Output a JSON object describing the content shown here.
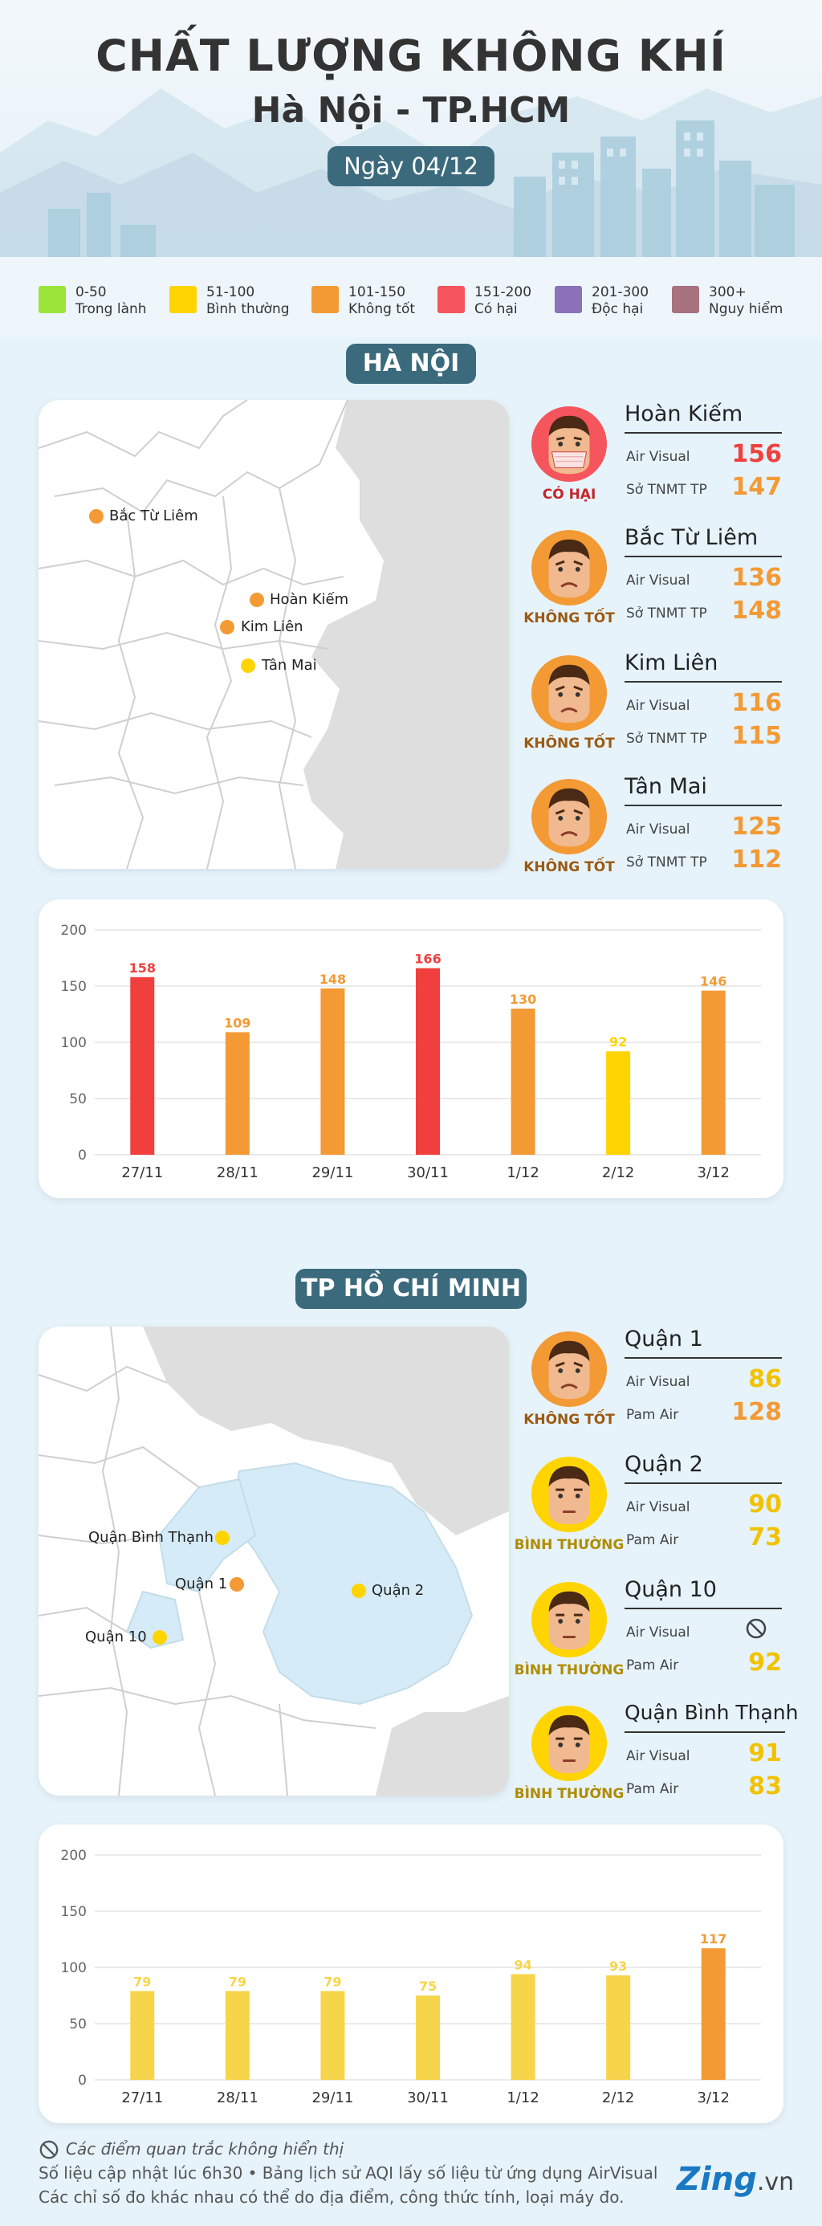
{
  "header": {
    "title": "CHẤT LƯỢNG KHÔNG KHÍ",
    "subtitle": "Hà Nội - TP.HCM",
    "date": "Ngày 04/12"
  },
  "legend": [
    {
      "range": "0-50",
      "label": "Trong lành",
      "color": "#9be438"
    },
    {
      "range": "51-100",
      "label": "Bình thường",
      "color": "#ffd400"
    },
    {
      "range": "101-150",
      "label": "Không tốt",
      "color": "#f39a35"
    },
    {
      "range": "151-200",
      "label": "Có hại",
      "color": "#f5555c"
    },
    {
      "range": "201-300",
      "label": "Độc hại",
      "color": "#8c72b8"
    },
    {
      "range": "300+",
      "label": "Nguy hiểm",
      "color": "#a7717d"
    }
  ],
  "hanoi": {
    "section_title": "HÀ NỘI",
    "map_labels": [
      "Bắc Từ Liêm",
      "Hoàn Kiếm",
      "Kim Liên",
      "Tân Mai"
    ],
    "stations": [
      {
        "name": "Hoàn Kiếm",
        "status": "CÓ HẠI",
        "source1": "Air Visual",
        "value1": "156",
        "source2": "Sở TNMT TP",
        "value2": "147"
      },
      {
        "name": "Bắc Từ Liêm",
        "status": "KHÔNG TỐT",
        "source1": "Air Visual",
        "value1": "136",
        "source2": "Sở TNMT TP",
        "value2": "148"
      },
      {
        "name": "Kim Liên",
        "status": "KHÔNG TỐT",
        "source1": "Air Visual",
        "value1": "116",
        "source2": "Sở TNMT TP",
        "value2": "115"
      },
      {
        "name": "Tân Mai",
        "status": "KHÔNG TỐT",
        "source1": "Air Visual",
        "value1": "125",
        "source2": "Sở TNMT TP",
        "value2": "112"
      }
    ]
  },
  "hcm": {
    "section_title": "TP HỒ CHÍ MINH",
    "map_labels": [
      "Quận Bình Thạnh",
      "Quận 1",
      "Quận 2",
      "Quận 10"
    ],
    "stations": [
      {
        "name": "Quận 1",
        "status": "KHÔNG TỐT",
        "source1": "Air Visual",
        "value1": "86",
        "source2": "Pam Air",
        "value2": "128"
      },
      {
        "name": "Quận 2",
        "status": "BÌNH THƯỜNG",
        "source1": "Air Visual",
        "value1": "90",
        "source2": "Pam Air",
        "value2": "73"
      },
      {
        "name": "Quận 10",
        "status": "BÌNH THƯỜNG",
        "source1": "Air Visual",
        "value1": "",
        "source2": "Pam Air",
        "value2": "92"
      },
      {
        "name": "Quận Bình Thạnh",
        "status": "BÌNH THƯỜNG",
        "source1": "Air Visual",
        "value1": "91",
        "source2": "Pam Air",
        "value2": "83"
      }
    ]
  },
  "chart_data": [
    {
      "type": "bar",
      "title": "",
      "xlabel": "",
      "ylabel": "",
      "ylim": [
        0,
        200
      ],
      "yticks": [
        0,
        50,
        100,
        150,
        200
      ],
      "grid": true,
      "categories": [
        "27/11",
        "28/11",
        "29/11",
        "30/11",
        "1/12",
        "2/12",
        "3/12"
      ],
      "values": [
        158,
        109,
        148,
        166,
        130,
        92,
        146
      ],
      "bar_colors": [
        "#f0403e",
        "#f39a35",
        "#f39a35",
        "#f0403e",
        "#f39a35",
        "#ffd400",
        "#f39a35"
      ]
    },
    {
      "type": "bar",
      "title": "",
      "xlabel": "",
      "ylabel": "",
      "ylim": [
        0,
        200
      ],
      "yticks": [
        0,
        50,
        100,
        150,
        200
      ],
      "grid": true,
      "categories": [
        "27/11",
        "28/11",
        "29/11",
        "30/11",
        "1/12",
        "2/12",
        "3/12"
      ],
      "values": [
        79,
        79,
        79,
        75,
        94,
        93,
        117
      ],
      "bar_colors": [
        "#f7d54a",
        "#f7d54a",
        "#f7d54a",
        "#f7d54a",
        "#f7d54a",
        "#f7d54a",
        "#f39a35"
      ]
    }
  ],
  "footer": {
    "note1": "Các điểm quan trắc không hiển thị",
    "note2": "Số liệu cập nhật lúc 6h30 • Bảng lịch sử AQI lấy số liệu từ ứng dụng AirVisual",
    "note3": "Các chỉ số đo khác nhau có thể do địa điểm, công thức tính, loại máy đo.",
    "brand": "Zing",
    "brand_suffix": ".vn"
  },
  "icons": {
    "not-shown": "no-entry-icon"
  },
  "colors": {
    "pill": "#3b6a7d",
    "bad": "#f39a35",
    "harmful": "#f0403e",
    "normal": "#ffd400",
    "status_red": "#c3262c",
    "status_orange": "#9c5a12",
    "status_yellow": "#b08c00"
  }
}
